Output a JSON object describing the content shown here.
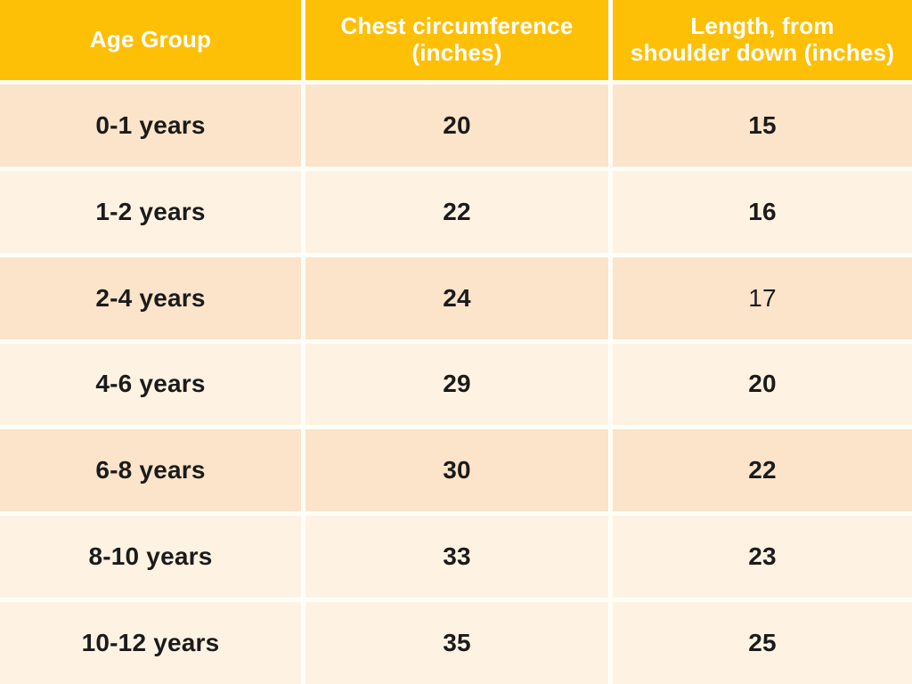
{
  "table": {
    "columns": [
      {
        "label": "Age Group",
        "lines": [
          "Age Group"
        ]
      },
      {
        "label": "Chest circumference (inches)",
        "lines": [
          "Chest circumference",
          "(inches)"
        ]
      },
      {
        "label": "Length, from shoulder down (inches)",
        "lines": [
          "Length, from",
          "shoulder down (inches)"
        ]
      }
    ],
    "rows": [
      {
        "age": "0-1 years",
        "chest": "20",
        "length": "15",
        "length_weight": "bold"
      },
      {
        "age": "1-2 years",
        "chest": "22",
        "length": "16",
        "length_weight": "bold"
      },
      {
        "age": "2-4 years",
        "chest": "24",
        "length": "17",
        "length_weight": "regular"
      },
      {
        "age": "4-6 years",
        "chest": "29",
        "length": "20",
        "length_weight": "bold"
      },
      {
        "age": "6-8 years",
        "chest": "30",
        "length": "22",
        "length_weight": "bold"
      },
      {
        "age": "8-10 years",
        "chest": "33",
        "length": "23",
        "length_weight": "bold"
      },
      {
        "age": "10-12 years",
        "chest": "35",
        "length": "25",
        "length_weight": "bold"
      }
    ],
    "row_shades": [
      "dark",
      "light",
      "dark",
      "light",
      "dark",
      "light",
      "light"
    ]
  },
  "colors": {
    "header_background": "#fec007",
    "header_text": "#ffffff",
    "row_dark_background": "#fbe4ca",
    "row_light_background": "#fef3e3",
    "body_text": "#1b1b1b",
    "divider": "#fffdf7"
  },
  "chart_data": {
    "type": "table",
    "title": "Children's garment size chart by age group",
    "columns": [
      "Age Group",
      "Chest circumference (inches)",
      "Length, from shoulder down (inches)"
    ],
    "rows": [
      [
        "0-1 years",
        20,
        15
      ],
      [
        "1-2 years",
        22,
        16
      ],
      [
        "2-4 years",
        24,
        17
      ],
      [
        "4-6 years",
        29,
        20
      ],
      [
        "6-8 years",
        30,
        22
      ],
      [
        "8-10 years",
        33,
        23
      ],
      [
        "10-12 years",
        35,
        25
      ]
    ]
  }
}
